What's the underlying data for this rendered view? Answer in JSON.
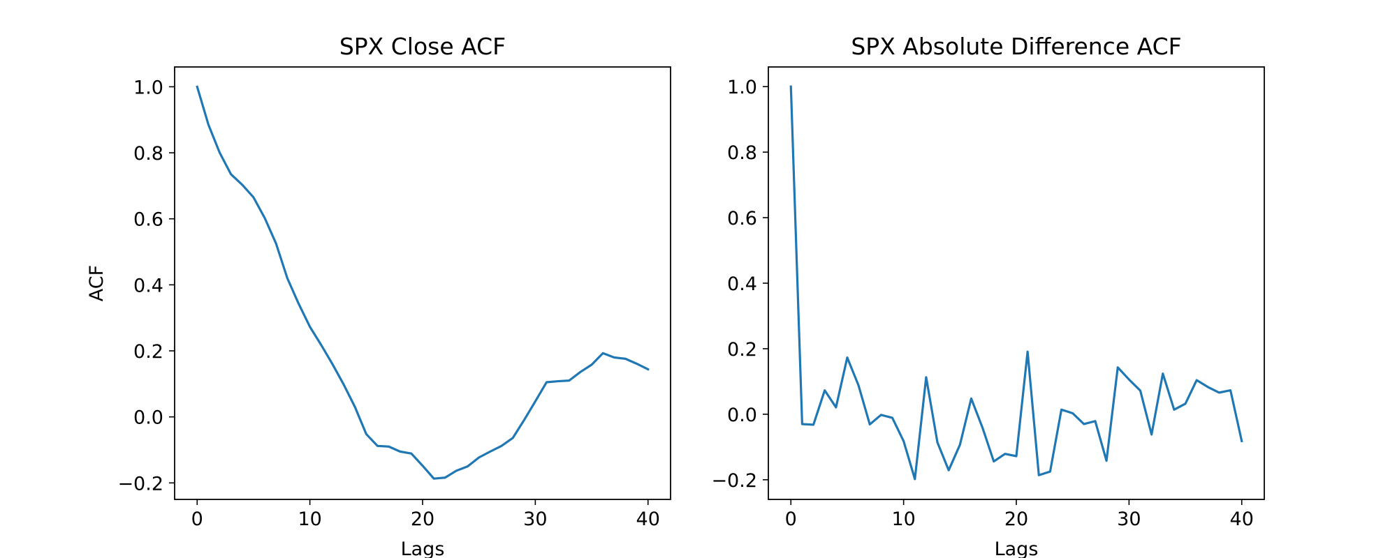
{
  "chart_data": [
    {
      "type": "line",
      "title": "SPX Close ACF",
      "xlabel": "Lags",
      "ylabel": "ACF",
      "xlim": [
        -2,
        42
      ],
      "ylim": [
        -0.25,
        1.06
      ],
      "xticks": [
        0,
        10,
        20,
        30,
        40
      ],
      "yticks": [
        -0.2,
        0.0,
        0.2,
        0.4,
        0.6,
        0.8,
        1.0
      ],
      "xtick_labels": [
        "0",
        "10",
        "20",
        "30",
        "40"
      ],
      "ytick_labels": [
        "−0.2",
        "0.0",
        "0.2",
        "0.4",
        "0.6",
        "0.8",
        "1.0"
      ],
      "grid": false,
      "color": "#1f77b4",
      "series": [
        {
          "x": [
            0,
            1,
            2,
            3,
            4,
            5,
            6,
            7,
            8,
            9,
            10,
            11,
            12,
            13,
            14,
            15,
            16,
            17,
            18,
            19,
            20,
            21,
            22,
            23,
            24,
            25,
            26,
            27,
            28,
            29,
            30,
            31,
            32,
            33,
            34,
            35,
            36,
            37,
            38,
            39,
            40
          ],
          "values": [
            1.0,
            0.885,
            0.8,
            0.735,
            0.703,
            0.665,
            0.602,
            0.525,
            0.42,
            0.343,
            0.273,
            0.218,
            0.16,
            0.098,
            0.03,
            -0.052,
            -0.088,
            -0.09,
            -0.105,
            -0.111,
            -0.148,
            -0.187,
            -0.184,
            -0.163,
            -0.15,
            -0.123,
            -0.105,
            -0.088,
            -0.064,
            -0.01,
            0.047,
            0.105,
            0.108,
            0.11,
            0.136,
            0.158,
            0.193,
            0.18,
            0.176,
            0.161,
            0.144
          ]
        }
      ]
    },
    {
      "type": "line",
      "title": "SPX Absolute Difference ACF",
      "xlabel": "Lags",
      "ylabel": "",
      "xlim": [
        -2,
        42
      ],
      "ylim": [
        -0.26,
        1.06
      ],
      "xticks": [
        0,
        10,
        20,
        30,
        40
      ],
      "yticks": [
        -0.2,
        0.0,
        0.2,
        0.4,
        0.6,
        0.8,
        1.0
      ],
      "xtick_labels": [
        "0",
        "10",
        "20",
        "30",
        "40"
      ],
      "ytick_labels": [
        "−0.2",
        "0.0",
        "0.2",
        "0.4",
        "0.6",
        "0.8",
        "1.0"
      ],
      "grid": false,
      "color": "#1f77b4",
      "series": [
        {
          "x": [
            0,
            1,
            2,
            3,
            4,
            5,
            6,
            7,
            8,
            9,
            10,
            11,
            12,
            13,
            14,
            15,
            16,
            17,
            18,
            19,
            20,
            21,
            22,
            23,
            24,
            25,
            26,
            27,
            28,
            29,
            30,
            31,
            32,
            33,
            34,
            35,
            36,
            37,
            38,
            39,
            40
          ],
          "values": [
            1.0,
            -0.03,
            -0.032,
            0.073,
            0.021,
            0.173,
            0.088,
            -0.031,
            -0.002,
            -0.011,
            -0.082,
            -0.198,
            0.113,
            -0.086,
            -0.171,
            -0.093,
            0.048,
            -0.041,
            -0.144,
            -0.121,
            -0.128,
            0.191,
            -0.186,
            -0.175,
            0.014,
            0.003,
            -0.03,
            -0.021,
            -0.142,
            0.143,
            0.106,
            0.072,
            -0.062,
            0.124,
            0.014,
            0.032,
            0.104,
            0.083,
            0.066,
            0.073,
            -0.082
          ]
        }
      ]
    }
  ]
}
